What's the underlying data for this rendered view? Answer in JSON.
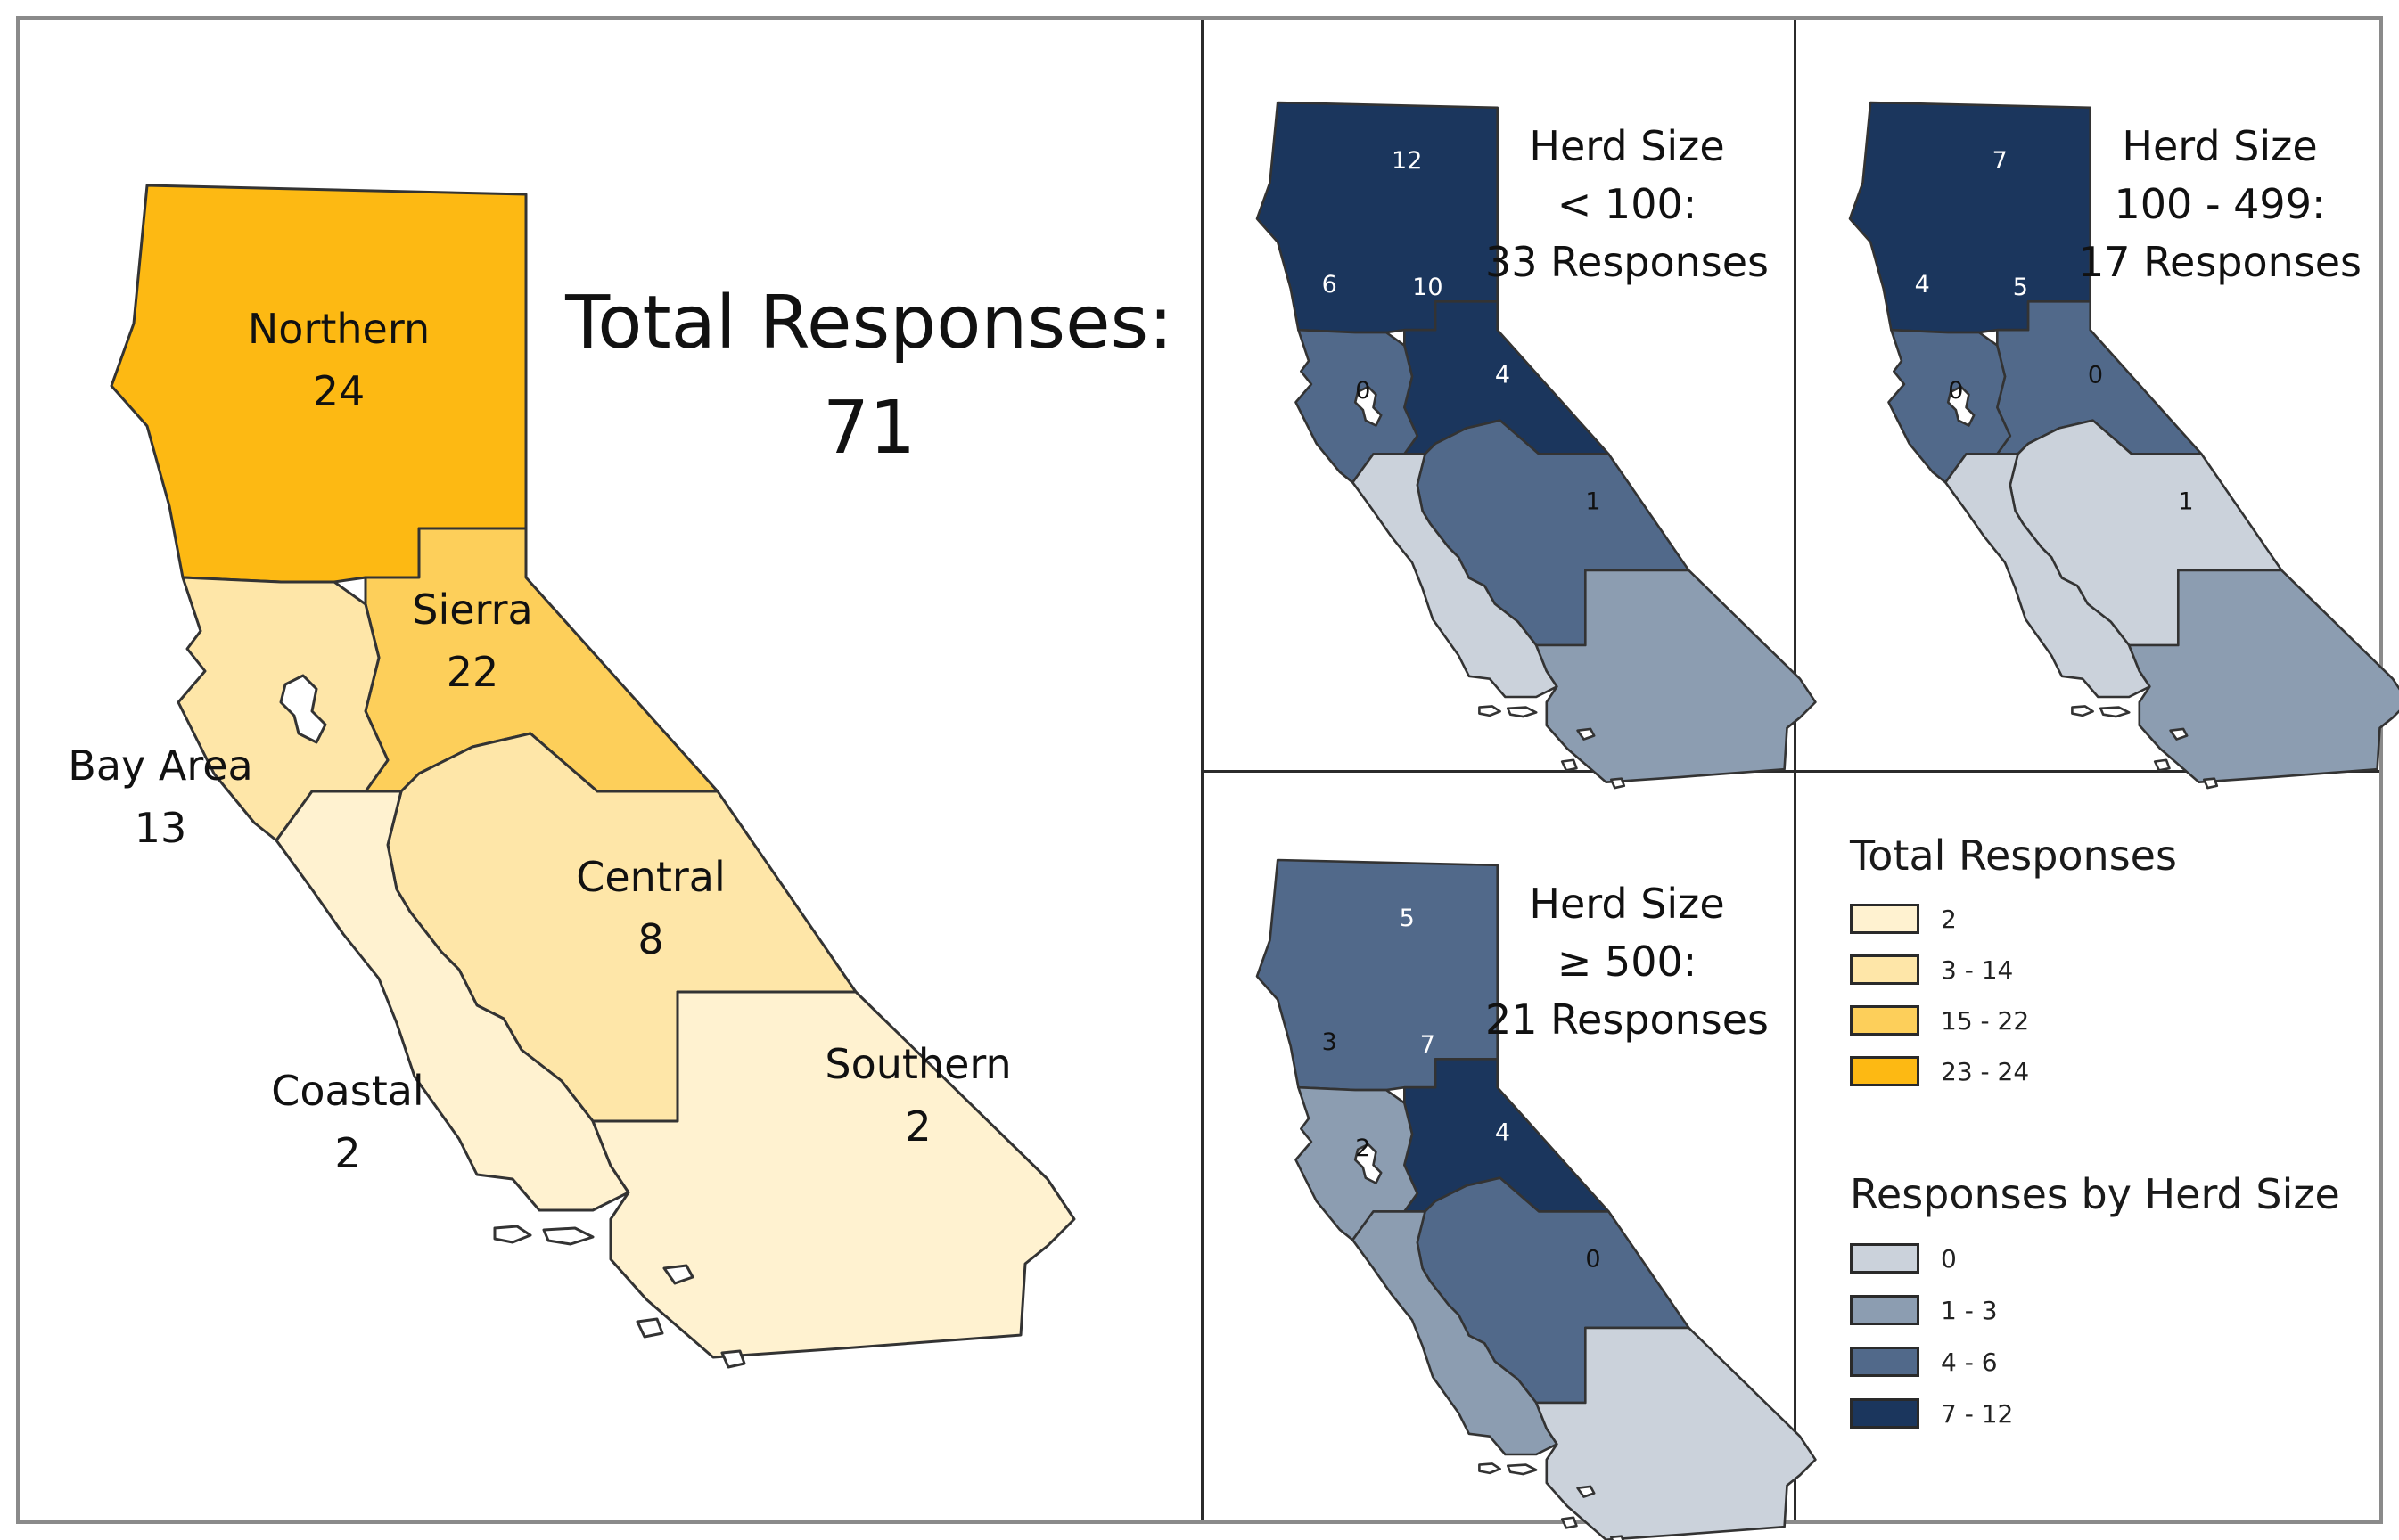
{
  "main_map": {
    "title_line1": "Total Responses:",
    "title_line2": "71",
    "regions": [
      {
        "name": "Northern",
        "value": "24",
        "color": "#FDB913"
      },
      {
        "name": "Sierra",
        "value": "22",
        "color": "#FDCF5A"
      },
      {
        "name": "Bay Area",
        "value": "13",
        "color": "#FEE6A8"
      },
      {
        "name": "Central",
        "value": "8",
        "color": "#FEE6A8"
      },
      {
        "name": "Southern",
        "value": "2",
        "color": "#FFF2D0"
      },
      {
        "name": "Coastal",
        "value": "2",
        "color": "#FFF2D0"
      }
    ]
  },
  "panels": [
    {
      "title1": "Herd Size",
      "title2": "< 100:",
      "title3": "33 Responses",
      "values": {
        "northern": "12",
        "bay": "6",
        "sierra": "10",
        "central": "4",
        "coastal": "0",
        "southern": "1"
      },
      "colors": {
        "northern": "#1B365D",
        "bay": "#51698A",
        "sierra": "#1B365D",
        "central": "#51698A",
        "coastal": "#CBD2DB",
        "southern": "#8C9DB1"
      }
    },
    {
      "title1": "Herd Size",
      "title2": "100 - 499:",
      "title3": "17 Responses",
      "values": {
        "northern": "7",
        "bay": "4",
        "sierra": "5",
        "central": "0",
        "coastal": "0",
        "southern": "1"
      },
      "colors": {
        "northern": "#1B365D",
        "bay": "#51698A",
        "sierra": "#51698A",
        "central": "#CBD2DB",
        "coastal": "#CBD2DB",
        "southern": "#8C9DB1"
      }
    },
    {
      "title1": "Herd Size",
      "title2": "≥ 500:",
      "title3": "21 Responses",
      "values": {
        "northern": "5",
        "bay": "3",
        "sierra": "7",
        "central": "4",
        "coastal": "2",
        "southern": "0"
      },
      "colors": {
        "northern": "#51698A",
        "bay": "#8C9DB1",
        "sierra": "#1B365D",
        "central": "#51698A",
        "coastal": "#8C9DB1",
        "southern": "#CBD2DB"
      }
    }
  ],
  "legend": {
    "total_title": "Total Responses",
    "total_items": [
      {
        "label": "2",
        "color": "#FFF2D0"
      },
      {
        "label": "3 - 14",
        "color": "#FEE6A8"
      },
      {
        "label": "15 - 22",
        "color": "#FDCF5A"
      },
      {
        "label": "23 - 24",
        "color": "#FDB913"
      }
    ],
    "herd_title": "Responses by Herd Size",
    "herd_items": [
      {
        "label": "0",
        "color": "#CBD2DB"
      },
      {
        "label": "1 - 3",
        "color": "#8C9DB1"
      },
      {
        "label": "4 - 6",
        "color": "#51698A"
      },
      {
        "label": "7 - 12",
        "color": "#1B365D"
      }
    ]
  }
}
